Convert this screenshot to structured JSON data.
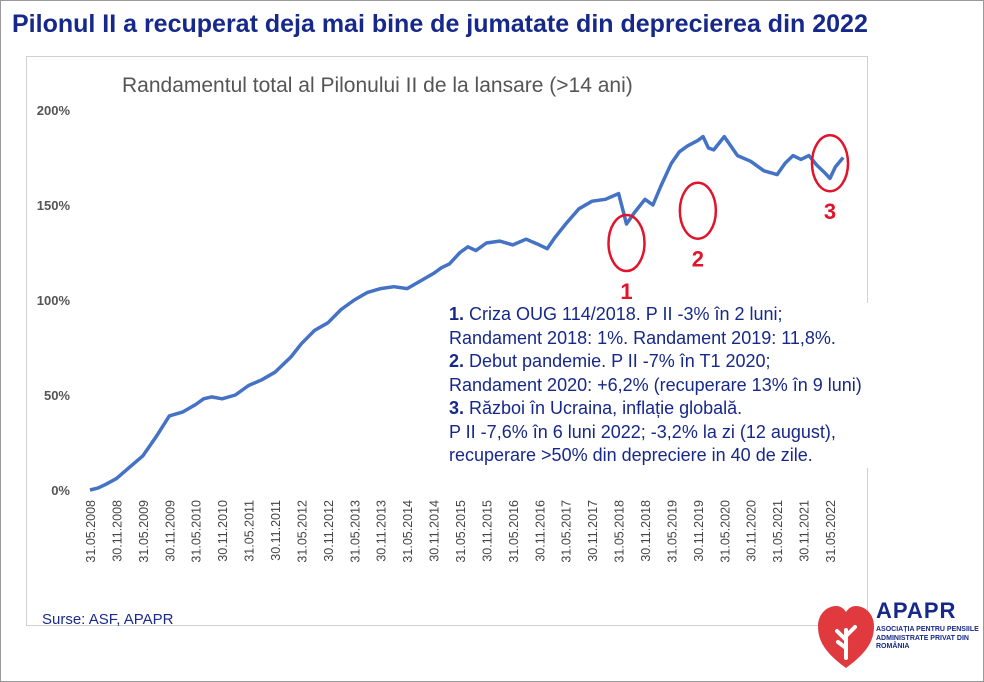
{
  "main_title": "Pilonul II a recuperat deja mai bine de jumatate din deprecierea din 2022",
  "chart_data": {
    "type": "line",
    "title": "Randamentul total al Pilonului II de la lansare (>14 ani)",
    "ylim": [
      0,
      200
    ],
    "yticks": [
      "0%",
      "50%",
      "100%",
      "150%",
      "200%"
    ],
    "ytick_values": [
      0,
      50,
      100,
      150,
      200
    ],
    "xticks": [
      "31.05.2008",
      "30.11.2008",
      "31.05.2009",
      "30.11.2009",
      "31.05.2010",
      "30.11.2010",
      "31.05.2011",
      "30.11.2011",
      "31.05.2012",
      "30.11.2012",
      "31.05.2013",
      "30.11.2013",
      "31.05.2014",
      "30.11.2014",
      "31.05.2015",
      "30.11.2015",
      "31.05.2016",
      "30.11.2016",
      "31.05.2017",
      "30.11.2017",
      "31.05.2018",
      "30.11.2018",
      "31.05.2019",
      "30.11.2019",
      "31.05.2020",
      "30.11.2020",
      "31.05.2021",
      "30.11.2021",
      "31.05.2022"
    ],
    "series": [
      {
        "name": "Randament total Pilon II",
        "color": "#4472c4",
        "x": [
          0,
          0.3,
          0.6,
          1,
          1.5,
          2,
          2.5,
          3,
          3.5,
          4,
          4.3,
          4.6,
          5,
          5.5,
          6,
          6.5,
          7,
          7.3,
          7.6,
          8,
          8.5,
          9,
          9.5,
          10,
          10.5,
          11,
          11.5,
          12,
          12.5,
          13,
          13.3,
          13.6,
          14,
          14.3,
          14.6,
          15,
          15.5,
          16,
          16.5,
          17,
          17.3,
          17.6,
          18,
          18.5,
          19,
          19.5,
          20,
          20.3,
          20.6,
          21,
          21.3,
          21.6,
          22,
          22.3,
          22.6,
          23,
          23.2,
          23.4,
          23.6,
          24,
          24.5,
          25,
          25.5,
          26,
          26.3,
          26.6,
          26.9,
          27.2,
          27.5,
          27.8,
          28,
          28.2,
          28.5
        ],
        "values": [
          0,
          1,
          3,
          6,
          12,
          18,
          28,
          39,
          41,
          45,
          48,
          49,
          48,
          50,
          55,
          58,
          62,
          66,
          70,
          77,
          84,
          88,
          95,
          100,
          104,
          106,
          107,
          106,
          110,
          114,
          117,
          119,
          125,
          128,
          126,
          130,
          131,
          129,
          132,
          129,
          127,
          133,
          140,
          148,
          152,
          153,
          156,
          140,
          146,
          153,
          150,
          160,
          172,
          178,
          181,
          184,
          186,
          180,
          179,
          186,
          176,
          173,
          168,
          166,
          172,
          176,
          174,
          176,
          171,
          167,
          164,
          170,
          175
        ]
      }
    ],
    "annotations": [
      {
        "label": "1",
        "x": 20.3,
        "y": 130
      },
      {
        "label": "2",
        "x": 23.0,
        "y": 147
      },
      {
        "label": "3",
        "x": 28.0,
        "y": 172
      }
    ]
  },
  "notes": [
    {
      "num": "1.",
      "text": " Criza OUG 114/2018. P II -3% în 2 luni;"
    },
    {
      "num": "",
      "text": "Randament 2018: 1%. Randament 2019: 11,8%."
    },
    {
      "num": "2.",
      "text": " Debut pandemie. P II -7% în T1 2020;"
    },
    {
      "num": "",
      "text": "Randament 2020: +6,2% (recuperare 13% în 9 luni)"
    },
    {
      "num": "3.",
      "text": " Război în Ucraina, inflație globală."
    },
    {
      "num": "",
      "text": "P II -7,6% în 6 luni 2022; -3,2% la zi (12 august),"
    },
    {
      "num": "",
      "text": "recuperare >50% din depreciere in 40 de zile."
    }
  ],
  "sources": "Surse: ASF, APAPR",
  "logo": {
    "name": "APAPR",
    "subtitle": "ASOCIAȚIA PENTRU PENSIILE ADMINISTRATE PRIVAT DIN ROMÂNIA",
    "color_red": "#e03a3e",
    "color_blue": "#16288a"
  }
}
